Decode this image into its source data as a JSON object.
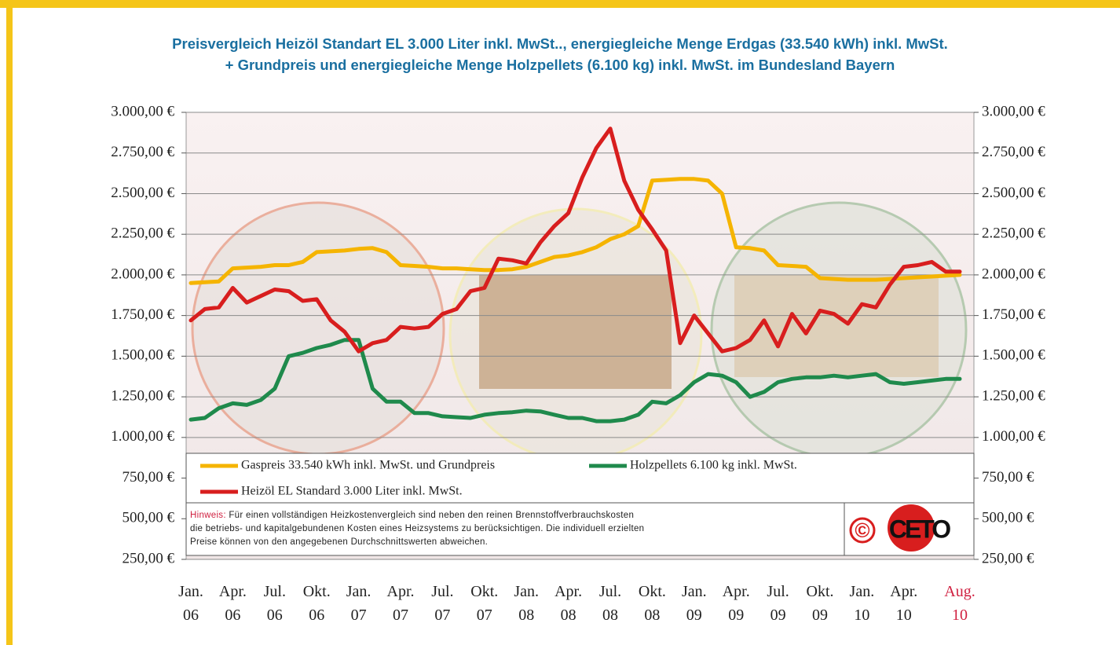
{
  "chart_data": {
    "type": "line",
    "title": "Preisvergleich Heizöl Standart EL 3.000 Liter inkl. MwSt.., energiegleiche Menge Erdgas (33.540 kWh) inkl. MwSt.\n+ Grundpreis und energiegleiche Menge Holzpellets (6.100 kg) inkl. MwSt. im Bundesland Bayern",
    "categories": [
      "Jan.\n06",
      null,
      null,
      "Apr.\n06",
      null,
      null,
      "Jul.\n06",
      null,
      null,
      "Okt.\n06",
      null,
      null,
      "Jan.\n07",
      null,
      null,
      "Apr.\n07",
      null,
      null,
      "Jul.\n07",
      null,
      null,
      "Okt.\n07",
      null,
      null,
      "Jan.\n08",
      null,
      null,
      "Apr.\n08",
      null,
      null,
      "Jul.\n08",
      null,
      null,
      "Okt.\n08",
      null,
      null,
      "Jan.\n09",
      null,
      null,
      "Apr.\n09",
      null,
      null,
      "Jul.\n09",
      null,
      null,
      "Okt.\n09",
      null,
      null,
      "Jan.\n10",
      null,
      null,
      "Apr.\n10",
      null,
      null,
      null,
      "Aug.\n10"
    ],
    "series": [
      {
        "name": "Gaspreis 33.540 kWh inkl. MwSt. und Grundpreis",
        "color": "#f5b400",
        "values": [
          1950,
          1955,
          1960,
          2040,
          2045,
          2050,
          2060,
          2060,
          2080,
          2140,
          2145,
          2150,
          2160,
          2165,
          2140,
          2060,
          2055,
          2050,
          2040,
          2040,
          2035,
          2030,
          2030,
          2035,
          2050,
          2080,
          2110,
          2120,
          2140,
          2170,
          2220,
          2250,
          2300,
          2580,
          2585,
          2590,
          2590,
          2580,
          2500,
          2170,
          2165,
          2150,
          2060,
          2055,
          2050,
          1980,
          1975,
          1970,
          1970,
          1970,
          1975,
          1980,
          1985,
          1990,
          1995,
          2000
        ]
      },
      {
        "name": "Holzpellets 6.100 kg inkl. MwSt.",
        "color": "#1f8a4c",
        "values": [
          1110,
          1120,
          1180,
          1210,
          1200,
          1230,
          1300,
          1500,
          1520,
          1550,
          1570,
          1600,
          1600,
          1300,
          1220,
          1220,
          1150,
          1150,
          1130,
          1125,
          1120,
          1140,
          1150,
          1155,
          1165,
          1160,
          1140,
          1120,
          1120,
          1100,
          1100,
          1110,
          1140,
          1220,
          1210,
          1260,
          1340,
          1390,
          1380,
          1340,
          1250,
          1280,
          1340,
          1360,
          1370,
          1370,
          1380,
          1370,
          1380,
          1390,
          1340,
          1330,
          1340,
          1350,
          1360,
          1360
        ]
      },
      {
        "name": "Heizöl EL Standard 3.000 Liter inkl. MwSt.",
        "color": "#d81e1e",
        "values": [
          1720,
          1790,
          1800,
          1920,
          1830,
          1870,
          1910,
          1900,
          1840,
          1850,
          1720,
          1650,
          1530,
          1580,
          1600,
          1680,
          1670,
          1680,
          1760,
          1790,
          1900,
          1920,
          2100,
          2090,
          2070,
          2200,
          2300,
          2380,
          2600,
          2780,
          2900,
          2580,
          2400,
          2280,
          2150,
          1580,
          1750,
          1640,
          1530,
          1550,
          1600,
          1720,
          1560,
          1760,
          1640,
          1780,
          1760,
          1700,
          1820,
          1800,
          1940,
          2050,
          2060,
          2080,
          2020,
          2020
        ]
      }
    ],
    "ylim": [
      250,
      3000
    ],
    "yticks": [
      {
        "value": 250,
        "label": "250,00 €"
      },
      {
        "value": 500,
        "label": "500,00 €"
      },
      {
        "value": 750,
        "label": "750,00 €"
      },
      {
        "value": 1000,
        "label": "1.000,00 €"
      },
      {
        "value": 1250,
        "label": "1.250,00 €"
      },
      {
        "value": 1500,
        "label": "1.500,00 €"
      },
      {
        "value": 1750,
        "label": "1.750,00 €"
      },
      {
        "value": 2000,
        "label": "2.000,00 €"
      },
      {
        "value": 2250,
        "label": "2.250,00 €"
      },
      {
        "value": 2500,
        "label": "2.500,00 €"
      },
      {
        "value": 2750,
        "label": "2.750,00 €"
      },
      {
        "value": 3000,
        "label": "3.000,00 €"
      }
    ],
    "y2lim": [
      250,
      3000
    ],
    "y2ticks": [
      {
        "value": 250,
        "label": "250,00 €"
      },
      {
        "value": 500,
        "label": "500,00 €"
      },
      {
        "value": 750,
        "label": "750,00 €"
      },
      {
        "value": 1000,
        "label": "1.000,00 €"
      },
      {
        "value": 1250,
        "label": "1.250,00 €"
      },
      {
        "value": 1500,
        "label": "1.500,00 €"
      },
      {
        "value": 1750,
        "label": "1.750,00 €"
      },
      {
        "value": 2000,
        "label": "2.000,00 €"
      },
      {
        "value": 2250,
        "label": "2.250,00 €"
      },
      {
        "value": 2500,
        "label": "2.500,00 €"
      },
      {
        "value": 2750,
        "label": "2.750,00 €"
      },
      {
        "value": 3000,
        "label": "3.000,00 €"
      }
    ],
    "grid": true,
    "note_label": "Hinweis:",
    "note": "Für einen vollständigen Heizkostenvergleich sind neben den reinen Brennstoffverbrauchskosten\ndie betriebs- und kapitalgebundenen Kosten eines Heizsystems zu berücksichtigen. Die individuell erzielten\nPreise können von den angegebenen Durchschnittswerten abweichen.",
    "logo_copyright": "©",
    "logo": "CETO"
  }
}
